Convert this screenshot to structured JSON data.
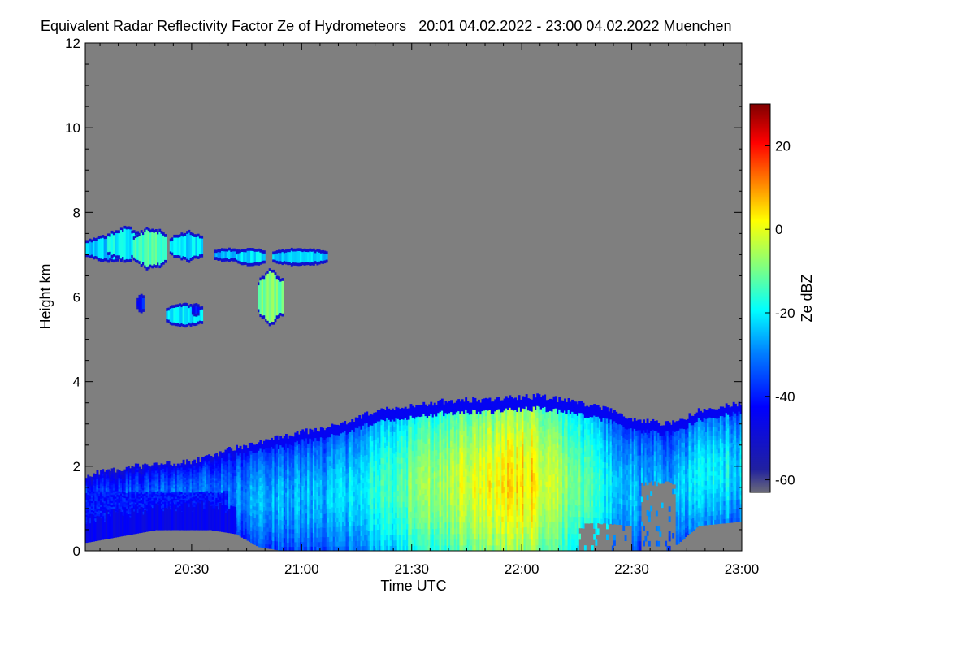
{
  "header": {
    "title": "Equivalent Radar Reflectivity Factor Ze of Hydrometeors",
    "period": "20:01 04.02.2022 - 23:00 04.02.2022",
    "location": "Muenchen"
  },
  "chart_data": {
    "type": "heatmap",
    "xlabel": "Time UTC",
    "ylabel": "Height km",
    "colorbar_label": "Ze dBZ",
    "x_ticks": [
      "20:30",
      "21:00",
      "21:30",
      "22:00",
      "22:30",
      "23:00"
    ],
    "x_tick_minutes": [
      30,
      60,
      90,
      120,
      150,
      180
    ],
    "xlim_minutes_after_2000": [
      1,
      180
    ],
    "y_ticks": [
      0,
      2,
      4,
      6,
      8,
      10,
      12
    ],
    "ylim": [
      0,
      12
    ],
    "colorbar_ticks": [
      20,
      0,
      -20,
      -40,
      -60
    ],
    "colorbar_range": [
      -63,
      30
    ],
    "background_color": "#7f7f7f",
    "colormap": [
      "#000080",
      "#0000ff",
      "#0080ff",
      "#00ffff",
      "#80ff80",
      "#ffff00",
      "#ff8000",
      "#ff0000",
      "#800000"
    ],
    "features": [
      {
        "name": "low cloud / precipitation layer",
        "t_start": 1,
        "t_end": 180,
        "base_km": 0,
        "top_km": 3.7,
        "max_dbz": 20
      },
      {
        "name": "upper cloud layer",
        "t_start": 1,
        "t_end": 67,
        "base_km": 5.3,
        "top_km": 7.8,
        "max_dbz": -10
      }
    ]
  }
}
